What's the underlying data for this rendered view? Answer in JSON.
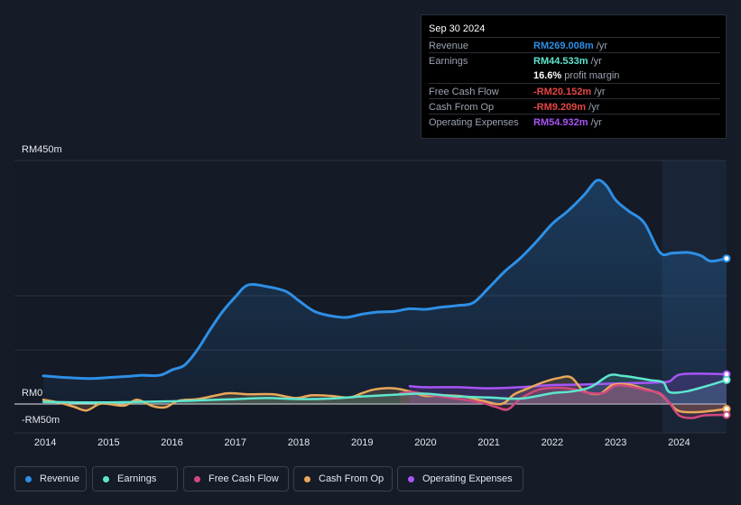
{
  "tooltip": {
    "date": "Sep 30 2024",
    "rows": [
      {
        "label": "Revenue",
        "value": "RM269.008m",
        "unit": " /yr",
        "color": "#2e8fe6"
      },
      {
        "label": "Earnings",
        "value": "RM44.533m",
        "unit": " /yr",
        "color": "#5ee6cf"
      },
      {
        "label": "",
        "value": "16.6%",
        "unit": " profit margin",
        "color": "#ffffff"
      },
      {
        "label": "Free Cash Flow",
        "value": "-RM20.152m",
        "unit": " /yr",
        "color": "#e64545"
      },
      {
        "label": "Cash From Op",
        "value": "-RM9.209m",
        "unit": " /yr",
        "color": "#e64545"
      },
      {
        "label": "Operating Expenses",
        "value": "RM54.932m",
        "unit": " /yr",
        "color": "#a855f7"
      }
    ]
  },
  "legend": [
    {
      "label": "Revenue",
      "color": "#2e8fe6"
    },
    {
      "label": "Earnings",
      "color": "#5ee6cf"
    },
    {
      "label": "Free Cash Flow",
      "color": "#d0497e"
    },
    {
      "label": "Cash From Op",
      "color": "#e8a85a"
    },
    {
      "label": "Operating Expenses",
      "color": "#a855f7"
    }
  ],
  "chart_data": {
    "type": "line",
    "title": "",
    "xlabel": "",
    "ylabel": "",
    "ylim": [
      -50,
      450
    ],
    "y_labels": [
      "RM450m",
      "RM0",
      "-RM50m"
    ],
    "x_tick_labels": [
      "2014",
      "2015",
      "2016",
      "2017",
      "2018",
      "2019",
      "2020",
      "2021",
      "2022",
      "2023",
      "2024"
    ],
    "xlim": [
      2013.97,
      2024.75
    ],
    "forecast_start": 2023.73,
    "series": [
      {
        "name": "Revenue",
        "color": "#2e8fe6",
        "fill": true,
        "x": [
          2013.97,
          2014.3,
          2014.7,
          2015.0,
          2015.3,
          2015.5,
          2015.8,
          2016.0,
          2016.2,
          2016.4,
          2016.6,
          2016.8,
          2017.0,
          2017.2,
          2017.5,
          2017.8,
          2018.0,
          2018.25,
          2018.5,
          2018.75,
          2019.0,
          2019.25,
          2019.5,
          2019.75,
          2020.0,
          2020.25,
          2020.5,
          2020.75,
          2021.0,
          2021.25,
          2021.5,
          2021.75,
          2022.0,
          2022.25,
          2022.5,
          2022.7,
          2022.85,
          2023.0,
          2023.2,
          2023.45,
          2023.7,
          2023.9,
          2024.15,
          2024.35,
          2024.5,
          2024.75
        ],
        "values": [
          52,
          49,
          47,
          49,
          51,
          53,
          53,
          63,
          72,
          100,
          137,
          171,
          198,
          220,
          217,
          208,
          191,
          171,
          163,
          160,
          166,
          170,
          171,
          176,
          175,
          179,
          182,
          187,
          215,
          245,
          270,
          300,
          333,
          357,
          386,
          413,
          404,
          377,
          357,
          335,
          280,
          279,
          280,
          274,
          264,
          269
        ]
      },
      {
        "name": "Earnings",
        "color": "#5ee6cf",
        "x": [
          2013.97,
          2014.5,
          2015.0,
          2015.5,
          2016.0,
          2016.5,
          2017.0,
          2017.5,
          2018.0,
          2018.5,
          2019.0,
          2019.5,
          2020.0,
          2020.5,
          2021.0,
          2021.5,
          2022.0,
          2022.3,
          2022.6,
          2022.9,
          2023.1,
          2023.3,
          2023.55,
          2023.75,
          2023.85,
          2024.1,
          2024.4,
          2024.75
        ],
        "values": [
          4,
          3,
          3,
          4,
          5,
          7,
          9,
          11,
          9,
          10,
          14,
          17,
          19,
          14,
          12,
          10,
          20,
          23,
          31,
          53,
          52,
          49,
          44,
          40,
          22,
          23,
          32,
          44.5
        ]
      },
      {
        "name": "Free Cash Flow",
        "color": "#d0497e",
        "x": [
          2019.6,
          2019.8,
          2020.0,
          2020.3,
          2020.6,
          2020.9,
          2021.1,
          2021.3,
          2021.5,
          2021.8,
          2022.1,
          2022.35,
          2022.55,
          2022.8,
          2023.0,
          2023.25,
          2023.5,
          2023.7,
          2023.85,
          2024.0,
          2024.2,
          2024.4,
          2024.75
        ],
        "values": [
          20,
          22,
          18,
          13,
          8,
          2,
          -5,
          -10,
          10,
          27,
          30,
          27,
          21,
          20,
          34,
          32,
          25,
          20,
          2,
          -21,
          -26,
          -21,
          -20.2
        ]
      },
      {
        "name": "Cash From Op",
        "color": "#e8a85a",
        "x": [
          2013.97,
          2014.2,
          2014.45,
          2014.65,
          2014.85,
          2015.0,
          2015.25,
          2015.45,
          2015.7,
          2015.9,
          2016.1,
          2016.4,
          2016.7,
          2016.9,
          2017.2,
          2017.6,
          2017.95,
          2018.2,
          2018.5,
          2018.8,
          2019.0,
          2019.2,
          2019.5,
          2019.8,
          2020.0,
          2020.3,
          2020.6,
          2020.9,
          2021.2,
          2021.4,
          2021.6,
          2021.85,
          2022.1,
          2022.3,
          2022.5,
          2022.75,
          2022.95,
          2023.2,
          2023.45,
          2023.7,
          2023.85,
          2024.0,
          2024.3,
          2024.75
        ],
        "values": [
          8,
          3,
          -5,
          -12,
          0,
          0,
          -3,
          8,
          -4,
          -6,
          6,
          9,
          16,
          20,
          18,
          18,
          11,
          16,
          15,
          12,
          20,
          27,
          29,
          22,
          15,
          16,
          14,
          6,
          0,
          18,
          28,
          40,
          48,
          49,
          24,
          19,
          35,
          36,
          28,
          19,
          2,
          -13,
          -15,
          -9.2
        ]
      },
      {
        "name": "Operating Expenses",
        "color": "#a855f7",
        "x": [
          2019.75,
          2020.0,
          2020.5,
          2021.0,
          2021.5,
          2022.0,
          2022.5,
          2023.0,
          2023.4,
          2023.7,
          2023.85,
          2024.0,
          2024.3,
          2024.75
        ],
        "values": [
          33,
          31,
          31,
          29,
          31,
          35,
          36,
          38,
          39,
          40,
          42,
          54,
          56,
          54.9
        ]
      }
    ]
  }
}
